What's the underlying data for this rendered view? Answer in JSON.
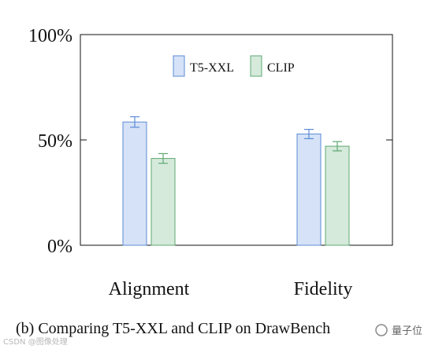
{
  "chart_data": {
    "type": "bar",
    "categories": [
      "Alignment",
      "Fidelity"
    ],
    "series": [
      {
        "name": "T5-XXL",
        "values": [
          58.5,
          52.8
        ],
        "errors": [
          2.5,
          2.2
        ],
        "fill": "#d6e2f7",
        "stroke": "#5b8bd6"
      },
      {
        "name": "CLIP",
        "values": [
          41.2,
          47.0
        ],
        "errors": [
          2.3,
          2.2
        ],
        "fill": "#d5eadb",
        "stroke": "#5fa873"
      }
    ],
    "yticks": [
      "0%",
      "50%",
      "100%"
    ],
    "ylim": [
      0,
      100
    ],
    "grid": false,
    "legend": "top-center",
    "caption": "(b) Comparing T5-XXL and CLIP on DrawBench"
  },
  "watermark": {
    "text": "量子位",
    "left_text": "CSDN @图像处理"
  }
}
